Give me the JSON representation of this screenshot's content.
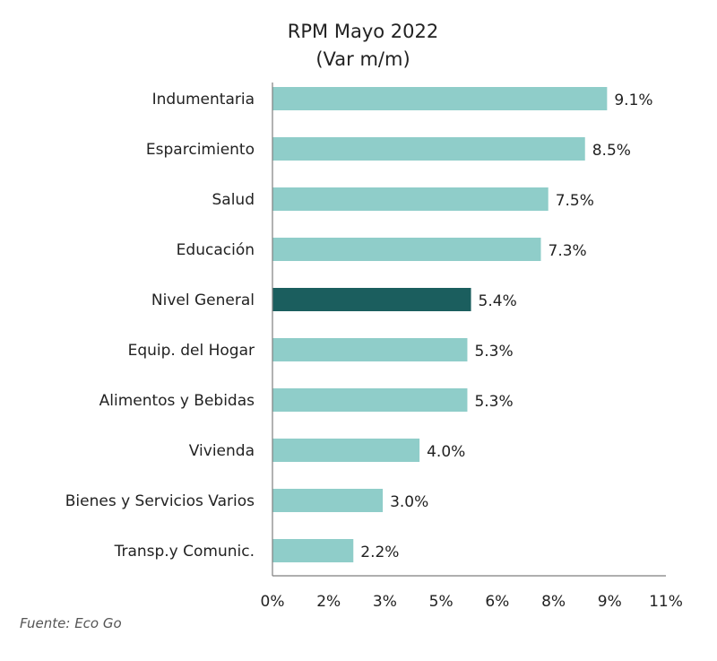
{
  "chart_data": {
    "type": "bar",
    "orientation": "horizontal",
    "title": "RPM Mayo 2022",
    "subtitle": "(Var m/m)",
    "categories": [
      "Indumentaria",
      "Esparcimiento",
      "Salud",
      "Educación",
      "Nivel General",
      "Equip. del Hogar",
      "Alimentos y Bebidas",
      "Vivienda",
      "Bienes y Servicios Varios",
      "Transp.y Comunic."
    ],
    "values": [
      9.1,
      8.5,
      7.5,
      7.3,
      5.4,
      5.3,
      5.3,
      4.0,
      3.0,
      2.2
    ],
    "data_labels": [
      "9.1%",
      "8.5%",
      "7.5%",
      "7.3%",
      "5.4%",
      "5.3%",
      "5.3%",
      "4.0%",
      "3.0%",
      "2.2%"
    ],
    "highlight_category": "Nivel General",
    "xlim": [
      0,
      10.7
    ],
    "x_tick_labels": [
      "0%",
      "2%",
      "3%",
      "5%",
      "6%",
      "8%",
      "9%",
      "11%"
    ],
    "grid": false,
    "colors": {
      "bar": "#8fcdc9",
      "highlight": "#1b5e5e",
      "axis": "#7f7f7f",
      "text": "#222222"
    },
    "source": "Fuente: Eco Go"
  }
}
